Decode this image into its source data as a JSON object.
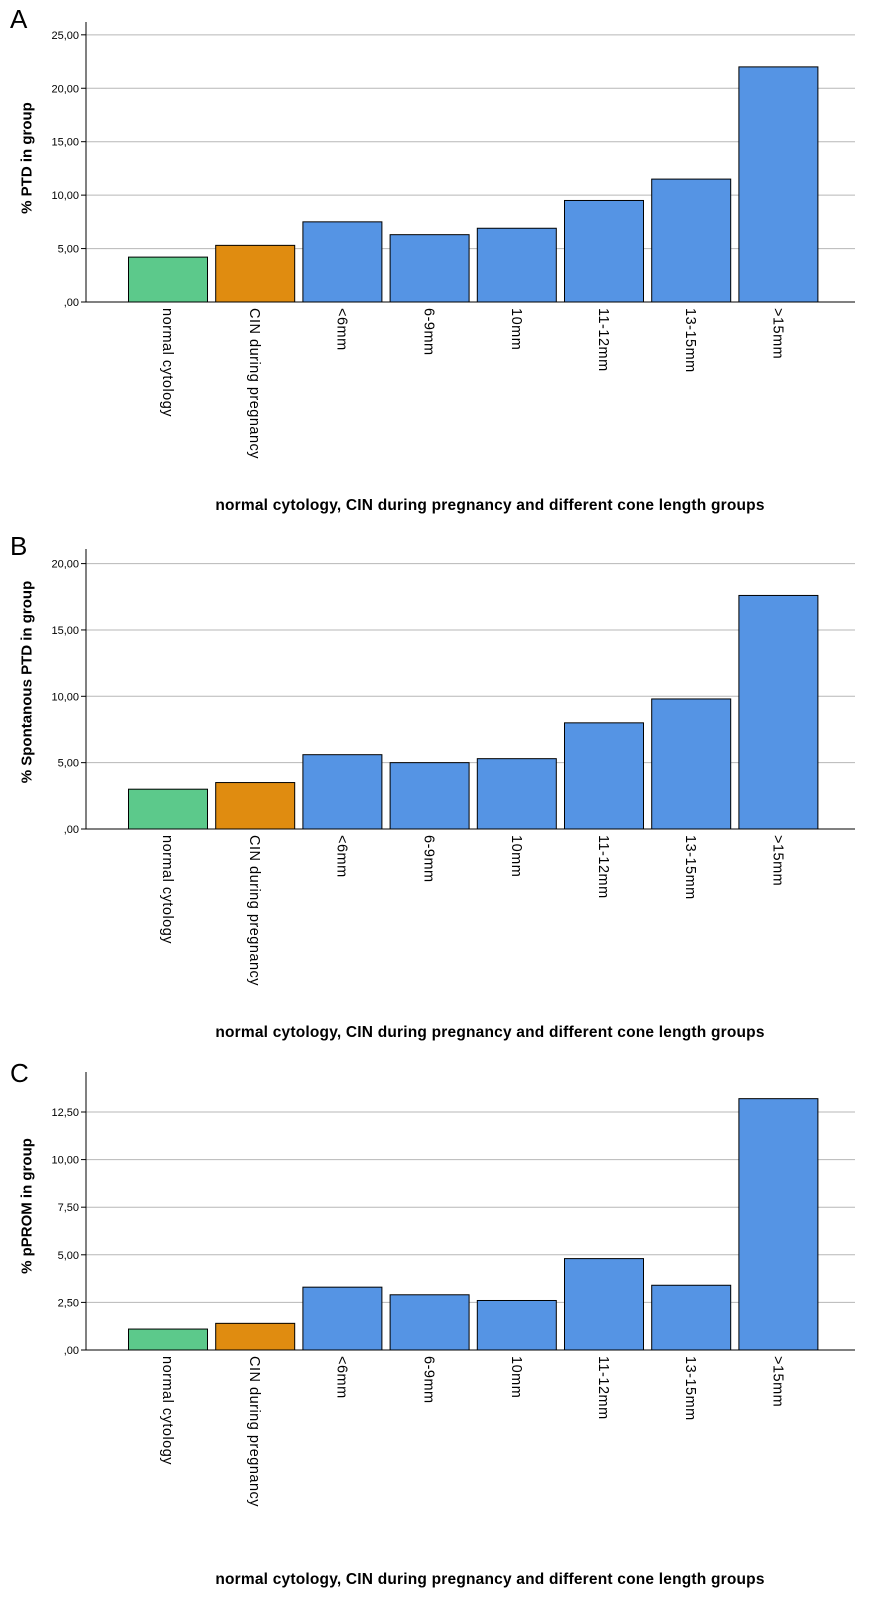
{
  "colors": {
    "normal": "#5cc98b",
    "cin": "#e08c10",
    "cone": "#5594e4",
    "grid": "#b7b7b7",
    "axis": "#000000",
    "bar_stroke": "#000000"
  },
  "categories": [
    "normal cytology",
    "CIN during pregnancy",
    "<6mm",
    "6-9mm",
    "10mm",
    "11-12mm",
    "13-15mm",
    ">15mm"
  ],
  "chart_data": [
    {
      "panel": "A",
      "type": "bar",
      "ylabel": "% PTD in group",
      "xlabel": "normal cytology, CIN during pregnancy and different cone length groups",
      "categories": [
        "normal cytology",
        "CIN during pregnancy",
        "<6mm",
        "6-9mm",
        "10mm",
        "11-12mm",
        "13-15mm",
        ">15mm"
      ],
      "values": [
        4.2,
        5.3,
        7.5,
        6.3,
        6.9,
        9.5,
        11.5,
        22.0
      ],
      "yticks": [
        0,
        5,
        10,
        15,
        20,
        25
      ],
      "ytick_labels": [
        ",00",
        "5,00",
        "10,00",
        "15,00",
        "20,00",
        "25,00"
      ],
      "ylim": [
        0,
        26.2
      ],
      "grid": true
    },
    {
      "panel": "B",
      "type": "bar",
      "ylabel": "% Spontanous PTD in group",
      "xlabel": "normal cytology, CIN during pregnancy and different cone length groups",
      "categories": [
        "normal cytology",
        "CIN during pregnancy",
        "<6mm",
        "6-9mm",
        "10mm",
        "11-12mm",
        "13-15mm",
        ">15mm"
      ],
      "values": [
        3.0,
        3.5,
        5.6,
        5.0,
        5.3,
        8.0,
        9.8,
        17.6
      ],
      "yticks": [
        0,
        5,
        10,
        15,
        20
      ],
      "ytick_labels": [
        ",00",
        "5,00",
        "10,00",
        "15,00",
        "20,00"
      ],
      "ylim": [
        0,
        21.1
      ],
      "grid": true
    },
    {
      "panel": "C",
      "type": "bar",
      "ylabel": "% pPROM in group",
      "xlabel": "normal cytology, CIN during pregnancy and different cone length groups",
      "categories": [
        "normal cytology",
        "CIN during pregnancy",
        "<6mm",
        "6-9mm",
        "10mm",
        "11-12mm",
        "13-15mm",
        ">15mm"
      ],
      "values": [
        1.1,
        1.4,
        3.3,
        2.9,
        2.6,
        4.8,
        3.4,
        13.2
      ],
      "yticks": [
        0,
        2.5,
        5,
        7.5,
        10,
        12.5
      ],
      "ytick_labels": [
        ",00",
        "2,50",
        "5,00",
        "7,50",
        "10,00",
        "12,50"
      ],
      "ylim": [
        0,
        14.6
      ],
      "grid": true
    }
  ]
}
